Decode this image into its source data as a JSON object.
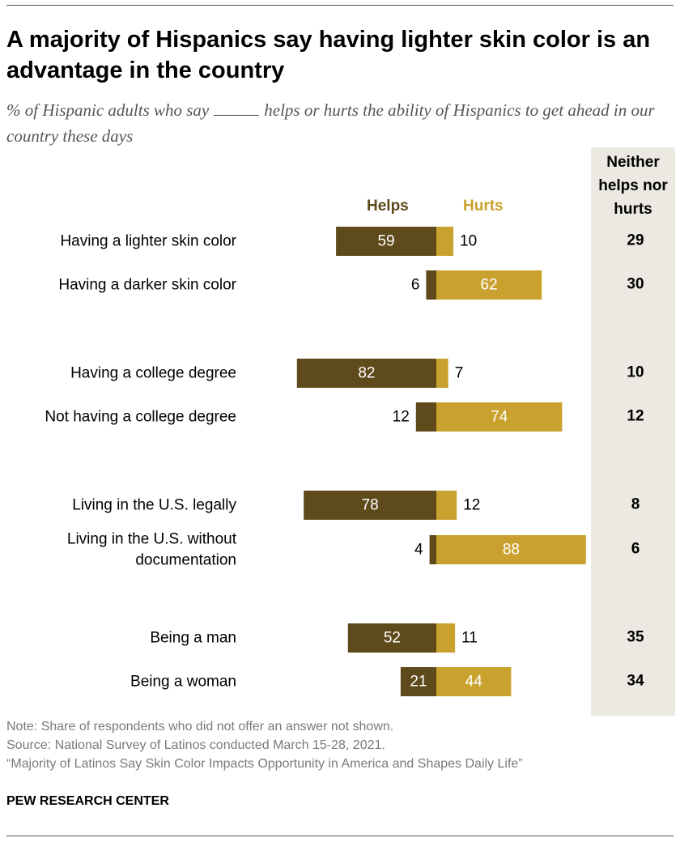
{
  "title": "A majority of Hispanics say having lighter skin color is an advantage in the country",
  "subtitle_before": "% of Hispanic adults who say",
  "subtitle_after": "helps or hurts the ability of Hispanics to get ahead in our country these days",
  "neither_header": "Neither helps nor hurts",
  "notes": {
    "note": "Note: Share of respondents who did not offer an answer not shown.",
    "source": "Source: National Survey of Latinos conducted March 15-28, 2021.",
    "report": "“Majority of Latinos Say Skin Color Impacts Opportunity in America and Shapes Daily Life”"
  },
  "brand": "PEW RESEARCH CENTER",
  "colors": {
    "helps": "#5e4a1a",
    "hurts": "#c9a12e",
    "neither_bg": "#ebe9e1"
  },
  "chart_data": {
    "type": "bar",
    "orientation": "horizontal-diverging",
    "series": [
      {
        "name": "Helps",
        "values": [
          59,
          6,
          82,
          12,
          78,
          4,
          52,
          21
        ]
      },
      {
        "name": "Hurts",
        "values": [
          10,
          62,
          7,
          74,
          12,
          88,
          11,
          44
        ]
      },
      {
        "name": "Neither helps nor hurts",
        "values": [
          29,
          30,
          10,
          12,
          8,
          6,
          35,
          34
        ]
      }
    ],
    "categories": [
      [
        "Having a lighter skin color"
      ],
      [
        "Having a darker skin color"
      ],
      [
        "Having a college degree"
      ],
      [
        "Not having a college degree"
      ],
      [
        "Living in the U.S. legally"
      ],
      [
        "Living in the U.S. without",
        "documentation"
      ],
      [
        "Being a man"
      ],
      [
        "Being a woman"
      ]
    ]
  }
}
